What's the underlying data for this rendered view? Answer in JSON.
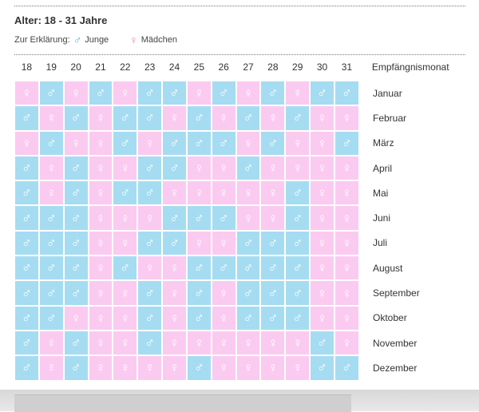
{
  "title": "Alter: 18 - 31 Jahre",
  "legend": {
    "label": "Zur Erklärung:",
    "boy_symbol": "♂",
    "boy_label": "Junge",
    "girl_symbol": "♀",
    "girl_label": "Mädchen"
  },
  "colors": {
    "boy": "#a6dcf1",
    "girl": "#fbcaf0",
    "boy_symbol": "#4fb7e0",
    "girl_symbol": "#e879c9"
  },
  "ages": [
    "18",
    "19",
    "20",
    "21",
    "22",
    "23",
    "24",
    "25",
    "26",
    "27",
    "28",
    "29",
    "30",
    "31"
  ],
  "month_header": "Empfängnismonat",
  "months": [
    "Januar",
    "Februar",
    "März",
    "April",
    "Mai",
    "Juni",
    "Juli",
    "August",
    "September",
    "Oktober",
    "November",
    "Dezember"
  ],
  "grid": [
    "FMFMFMMFMFMFMM",
    "MFMFMMFMFMFMFF",
    "FMFFMFMMMFMFFM",
    "MFMFFMMFFMFFFF",
    "MFMFMMFFFFFMFF",
    "MMMFFFMMMFFMFF",
    "MMMFFMMFFMMMFF",
    "MMMFMFFMMMMMFF",
    "MMMFFMFMFMMMFF",
    "MMFFFMFMFMMMFF",
    "MFMFFMFFFFFFMF",
    "MFMFFFFMFFFFMM"
  ]
}
